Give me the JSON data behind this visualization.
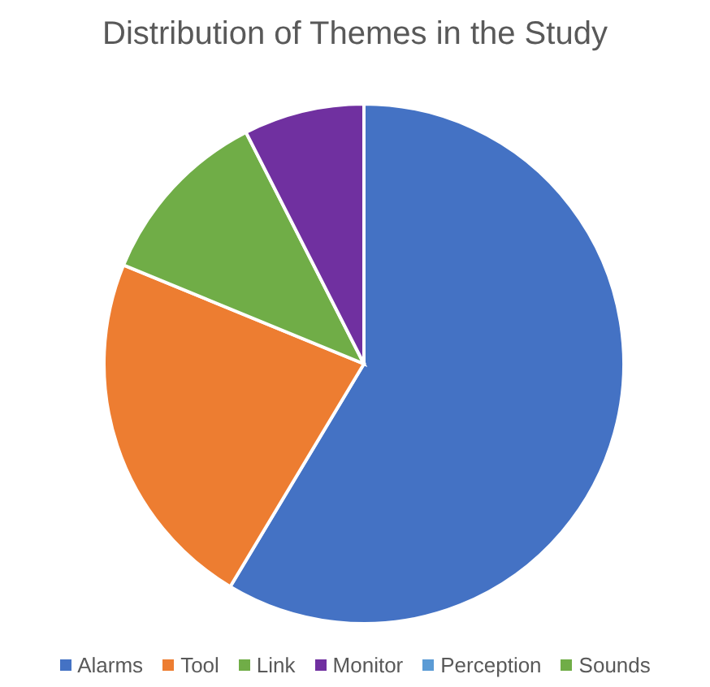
{
  "chart_data": {
    "type": "pie",
    "title": "Distribution of Themes in the Study",
    "categories": [
      "Alarms",
      "Tool",
      "Link",
      "Monitor",
      "Perception",
      "Sounds"
    ],
    "values": [
      58.6,
      22.6,
      11.3,
      7.5,
      0,
      0
    ],
    "colors": [
      "#4472c4",
      "#ed7d31",
      "#70ad47",
      "#7030a0",
      "#5b9bd5",
      "#70ad47"
    ],
    "legend": "bottom"
  }
}
